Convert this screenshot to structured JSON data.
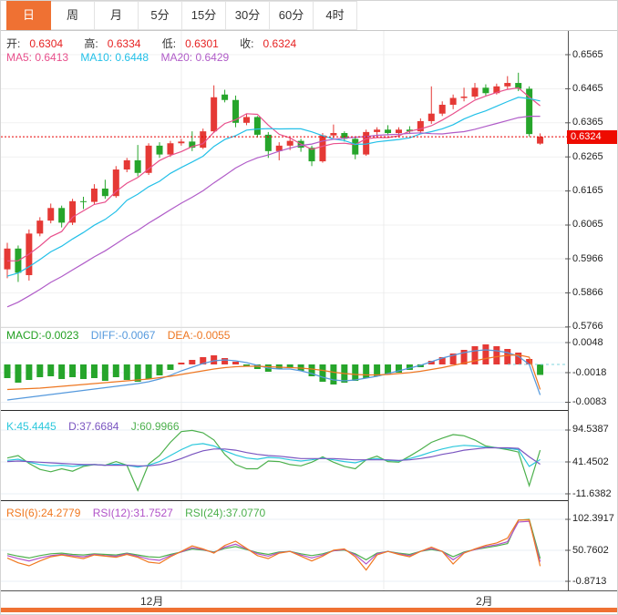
{
  "toolbar": {
    "tabs": [
      {
        "label": "日",
        "name": "tab-day",
        "active": true
      },
      {
        "label": "周",
        "name": "tab-week",
        "active": false
      },
      {
        "label": "月",
        "name": "tab-month",
        "active": false
      },
      {
        "label": "5分",
        "name": "tab-5min",
        "active": false
      },
      {
        "label": "15分",
        "name": "tab-15min",
        "active": false
      },
      {
        "label": "30分",
        "name": "tab-30min",
        "active": false
      },
      {
        "label": "60分",
        "name": "tab-60min",
        "active": false
      },
      {
        "label": "4时",
        "name": "tab-4hour",
        "active": false
      }
    ]
  },
  "main_chart": {
    "ohlc": {
      "o_label": "开:",
      "o": "0.6304",
      "h_label": "高:",
      "h": "0.6334",
      "l_label": "低:",
      "l": "0.6301",
      "c_label": "收:",
      "c": "0.6324"
    },
    "ma_header": {
      "ma5": "MA5: 0.6413",
      "ma10": "MA10: 0.6448",
      "ma20": "MA20: 0.6429"
    },
    "price_badge": "0.6324",
    "y_ticks": [
      "0.6565",
      "0.6465",
      "0.6365",
      "0.6265",
      "0.6165",
      "0.6065",
      "0.5966",
      "0.5866",
      "0.5766"
    ]
  },
  "macd_panel": {
    "macd_label": "MACD:-0.0023",
    "diff_label": "DIFF:-0.0067",
    "dea_label": "DEA:-0.0055",
    "y_ticks": [
      "0.0048",
      "-0.0018",
      "-0.0083"
    ]
  },
  "kdj_panel": {
    "k_label": "K:45.4445",
    "d_label": "D:37.6684",
    "j_label": "J:60.9966",
    "y_ticks": [
      "94.5387",
      "41.4502",
      "-11.6382"
    ]
  },
  "rsi_panel": {
    "rsi6_label": "RSI(6):24.2779",
    "rsi12_label": "RSI(12):31.7527",
    "rsi24_label": "RSI(24):37.0770",
    "y_ticks": [
      "102.3917",
      "50.7602",
      "-0.8713"
    ]
  },
  "x_axis": {
    "labels": [
      "12月",
      "2月"
    ]
  },
  "colors": {
    "up": "#e53935",
    "down": "#26a52b",
    "ma5": "#e8508c",
    "ma10": "#23c0e8",
    "ma20": "#b05cc8",
    "macd_text": "#22a022",
    "diff": "#5599dd",
    "dea": "#ee7722",
    "k": "#2ac8dc",
    "d": "#7a55c0",
    "j": "#4cb04c",
    "rsi6": "#f07820",
    "rsi12": "#b052c8",
    "rsi24": "#4cb04c",
    "accent": "#ef7133",
    "price_line": "#e60000",
    "badge_bg": "#ee0b00"
  },
  "chart_data": [
    {
      "type": "candlestick",
      "title": "Daily candlestick with MA5/MA10/MA20",
      "x_labels": [
        "12月",
        "2月"
      ],
      "y_ticks": [
        0.6565,
        0.6465,
        0.6365,
        0.6265,
        0.6165,
        0.6065,
        0.5966,
        0.5866,
        0.5766
      ],
      "last_ohlc": {
        "open": 0.6304,
        "high": 0.6334,
        "low": 0.6301,
        "close": 0.6324
      },
      "ma_values": {
        "ma5": 0.6413,
        "ma10": 0.6448,
        "ma20": 0.6429
      },
      "current_price": 0.6324,
      "candles_ohlc": [
        [
          0.5935,
          0.6013,
          0.5909,
          0.5996
        ],
        [
          0.5996,
          0.6005,
          0.5898,
          0.5925
        ],
        [
          0.5918,
          0.6052,
          0.5902,
          0.604
        ],
        [
          0.604,
          0.6088,
          0.6032,
          0.6078
        ],
        [
          0.6078,
          0.6128,
          0.607,
          0.6115
        ],
        [
          0.6115,
          0.6122,
          0.6058,
          0.6072
        ],
        [
          0.6072,
          0.6142,
          0.6065,
          0.6135
        ],
        [
          0.6135,
          0.6148,
          0.6112,
          0.6133
        ],
        [
          0.6133,
          0.6185,
          0.6125,
          0.6172
        ],
        [
          0.6172,
          0.6198,
          0.6142,
          0.615
        ],
        [
          0.615,
          0.6238,
          0.6145,
          0.6228
        ],
        [
          0.6228,
          0.6262,
          0.622,
          0.6255
        ],
        [
          0.6255,
          0.63,
          0.6208,
          0.6218
        ],
        [
          0.6218,
          0.6305,
          0.6212,
          0.6298
        ],
        [
          0.6298,
          0.6308,
          0.6262,
          0.6272
        ],
        [
          0.6272,
          0.6312,
          0.6265,
          0.6305
        ],
        [
          0.6305,
          0.6318,
          0.6298,
          0.631
        ],
        [
          0.631,
          0.634,
          0.6282,
          0.6292
        ],
        [
          0.6292,
          0.6348,
          0.6288,
          0.634
        ],
        [
          0.634,
          0.6475,
          0.6335,
          0.644
        ],
        [
          0.6448,
          0.6462,
          0.6425,
          0.6432
        ],
        [
          0.6432,
          0.6445,
          0.6352,
          0.6365
        ],
        [
          0.6365,
          0.6392,
          0.6358,
          0.6382
        ],
        [
          0.6382,
          0.6385,
          0.6322,
          0.633
        ],
        [
          0.633,
          0.6338,
          0.6262,
          0.6282
        ],
        [
          0.6282,
          0.6308,
          0.6255,
          0.6298
        ],
        [
          0.6298,
          0.6322,
          0.6285,
          0.6312
        ],
        [
          0.6312,
          0.6318,
          0.628,
          0.6292
        ],
        [
          0.6292,
          0.6298,
          0.6238,
          0.6252
        ],
        [
          0.6252,
          0.6335,
          0.6248,
          0.6328
        ],
        [
          0.6328,
          0.636,
          0.632,
          0.6335
        ],
        [
          0.6335,
          0.634,
          0.631,
          0.6318
        ],
        [
          0.6318,
          0.6322,
          0.6258,
          0.6272
        ],
        [
          0.6272,
          0.6345,
          0.6268,
          0.6338
        ],
        [
          0.6338,
          0.6352,
          0.6325,
          0.6345
        ],
        [
          0.6345,
          0.6358,
          0.6328,
          0.6335
        ],
        [
          0.6335,
          0.6352,
          0.6322,
          0.6345
        ],
        [
          0.6345,
          0.6355,
          0.6332,
          0.634
        ],
        [
          0.634,
          0.6378,
          0.6335,
          0.637
        ],
        [
          0.637,
          0.6472,
          0.6362,
          0.6392
        ],
        [
          0.6392,
          0.6428,
          0.6385,
          0.6418
        ],
        [
          0.6418,
          0.6448,
          0.6405,
          0.6438
        ],
        [
          0.6438,
          0.6468,
          0.6428,
          0.6442
        ],
        [
          0.6442,
          0.6482,
          0.6435,
          0.6468
        ],
        [
          0.6468,
          0.6478,
          0.6445,
          0.6452
        ],
        [
          0.6452,
          0.648,
          0.6448,
          0.6472
        ],
        [
          0.6472,
          0.6502,
          0.6462,
          0.6482
        ],
        [
          0.6482,
          0.6512,
          0.6458,
          0.6465
        ],
        [
          0.6465,
          0.6472,
          0.6325,
          0.6332
        ],
        [
          0.6304,
          0.6334,
          0.6301,
          0.6324
        ]
      ]
    },
    {
      "type": "bar",
      "title": "MACD",
      "y_ticks": [
        0.0048,
        -0.0018,
        -0.0083
      ],
      "last_values": {
        "macd": -0.0023,
        "diff": -0.0067,
        "dea": -0.0055
      },
      "histogram": [
        -0.003,
        -0.004,
        -0.0034,
        -0.0028,
        -0.0026,
        -0.0032,
        -0.0028,
        -0.0032,
        -0.003,
        -0.0036,
        -0.0028,
        -0.0034,
        -0.0038,
        -0.0032,
        -0.0024,
        -0.0012,
        0.0004,
        0.001,
        0.0016,
        0.002,
        0.0014,
        0.0006,
        -0.0004,
        -0.001,
        -0.0016,
        -0.001,
        -0.0006,
        -0.0014,
        -0.0026,
        -0.0038,
        -0.0044,
        -0.004,
        -0.0036,
        -0.003,
        -0.0026,
        -0.0022,
        -0.0018,
        -0.0012,
        -0.0006,
        0.0008,
        0.0016,
        0.0024,
        0.0032,
        0.004,
        0.0044,
        0.004,
        0.0034,
        0.0026,
        0.0012,
        -0.0023
      ],
      "series": [
        {
          "name": "DIFF",
          "values": [
            -0.0078,
            -0.0075,
            -0.0072,
            -0.0069,
            -0.0066,
            -0.0063,
            -0.006,
            -0.0057,
            -0.0054,
            -0.0051,
            -0.0048,
            -0.0045,
            -0.0042,
            -0.0038,
            -0.0032,
            -0.0024,
            -0.0014,
            -0.0006,
            0.0002,
            0.0008,
            0.001,
            0.0008,
            0.0004,
            -0.0002,
            -0.0008,
            -0.001,
            -0.001,
            -0.0014,
            -0.002,
            -0.0028,
            -0.0034,
            -0.0036,
            -0.0034,
            -0.003,
            -0.0026,
            -0.002,
            -0.0014,
            -0.0008,
            -0.0002,
            0.0006,
            0.0014,
            0.002,
            0.0026,
            0.003,
            0.0032,
            0.003,
            0.0026,
            0.0018,
            0.0,
            -0.0067
          ]
        },
        {
          "name": "DEA",
          "values": [
            -0.0055,
            -0.0054,
            -0.0053,
            -0.0052,
            -0.005,
            -0.0048,
            -0.0046,
            -0.0044,
            -0.0042,
            -0.004,
            -0.0038,
            -0.0036,
            -0.0034,
            -0.0032,
            -0.0029,
            -0.0026,
            -0.0022,
            -0.0018,
            -0.0014,
            -0.001,
            -0.0007,
            -0.0005,
            -0.0004,
            -0.0004,
            -0.0005,
            -0.0006,
            -0.0007,
            -0.0008,
            -0.001,
            -0.0013,
            -0.0017,
            -0.002,
            -0.0022,
            -0.0023,
            -0.0023,
            -0.0022,
            -0.002,
            -0.0018,
            -0.0015,
            -0.0011,
            -0.0007,
            -0.0002,
            0.0003,
            0.0008,
            0.0013,
            0.0017,
            0.002,
            0.0021,
            0.0016,
            -0.0055
          ]
        }
      ]
    },
    {
      "type": "line",
      "title": "KDJ",
      "y_ticks": [
        94.5387,
        41.4502,
        -11.6382
      ],
      "last_values": {
        "K": 45.4445,
        "D": 37.6684,
        "J": 60.9966
      },
      "series": [
        {
          "name": "K",
          "values": [
            44,
            46,
            41,
            37,
            35,
            36,
            34,
            36,
            37,
            36,
            38,
            36,
            33,
            36,
            42,
            52,
            62,
            70,
            72,
            68,
            60,
            53,
            48,
            46,
            49,
            48,
            45,
            43,
            45,
            48,
            45,
            42,
            40,
            45,
            47,
            44,
            43,
            47,
            52,
            58,
            63,
            67,
            69,
            68,
            66,
            65,
            64,
            62,
            34,
            45.4
          ]
        },
        {
          "name": "D",
          "values": [
            42,
            43,
            42,
            41,
            40,
            39,
            38,
            37,
            37,
            36,
            36,
            36,
            35,
            35,
            37,
            41,
            47,
            54,
            60,
            63,
            63,
            61,
            57,
            54,
            52,
            51,
            49,
            47,
            47,
            47,
            47,
            46,
            45,
            45,
            45,
            45,
            44,
            45,
            47,
            50,
            54,
            57,
            61,
            63,
            65,
            65,
            65,
            64,
            50,
            37.7
          ]
        },
        {
          "name": "J",
          "values": [
            48,
            52,
            39,
            29,
            25,
            30,
            26,
            34,
            37,
            36,
            42,
            36,
            -6,
            38,
            52,
            74,
            92,
            94,
            90,
            78,
            54,
            37,
            30,
            30,
            43,
            42,
            37,
            35,
            41,
            50,
            41,
            34,
            30,
            45,
            51,
            42,
            41,
            51,
            62,
            74,
            81,
            87,
            85,
            78,
            68,
            65,
            62,
            58,
            2,
            61
          ]
        }
      ]
    },
    {
      "type": "line",
      "title": "RSI",
      "y_ticks": [
        102.3917,
        50.7602,
        -0.8713
      ],
      "last_values": {
        "rsi6": 24.2779,
        "rsi12": 31.7527,
        "rsi24": 37.077
      },
      "series": [
        {
          "name": "RSI6",
          "values": [
            38,
            30,
            25,
            33,
            40,
            43,
            40,
            37,
            43,
            41,
            39,
            44,
            39,
            31,
            29,
            40,
            49,
            58,
            53,
            46,
            59,
            66,
            54,
            42,
            37,
            46,
            49,
            41,
            33,
            41,
            51,
            53,
            40,
            18,
            43,
            49,
            44,
            40,
            49,
            56,
            49,
            28,
            46,
            53,
            59,
            63,
            71,
            101,
            101.5,
            24.3
          ]
        },
        {
          "name": "RSI12",
          "values": [
            42,
            37,
            33,
            38,
            42,
            44,
            42,
            40,
            44,
            42,
            41,
            45,
            41,
            36,
            34,
            42,
            48,
            55,
            52,
            47,
            56,
            61,
            53,
            45,
            41,
            47,
            49,
            43,
            38,
            43,
            50,
            52,
            43,
            28,
            45,
            49,
            45,
            42,
            49,
            54,
            49,
            35,
            47,
            52,
            57,
            60,
            65,
            98,
            99,
            31.8
          ]
        },
        {
          "name": "RSI24",
          "values": [
            45,
            41,
            38,
            42,
            45,
            46,
            44,
            43,
            45,
            44,
            43,
            46,
            43,
            40,
            39,
            44,
            48,
            53,
            51,
            48,
            54,
            57,
            52,
            47,
            44,
            48,
            49,
            45,
            42,
            45,
            50,
            51,
            45,
            35,
            46,
            49,
            46,
            44,
            49,
            52,
            49,
            40,
            48,
            52,
            55,
            58,
            62,
            101,
            102.4,
            37.1
          ]
        }
      ]
    }
  ]
}
